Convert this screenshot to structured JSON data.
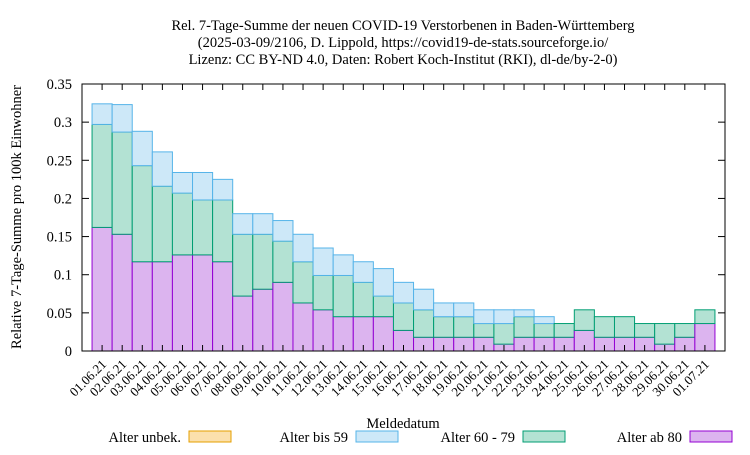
{
  "chart_data": {
    "type": "bar",
    "stacked": true,
    "title_lines": [
      "Rel. 7-Tage-Summe der neuen COVID-19 Verstorbenen in Baden-Württemberg",
      "(2025-03-09/2106, D. Lippold, https://covid19-de-stats.sourceforge.io/",
      "Lizenz: CC BY-ND 4.0, Daten: Robert Koch-Institut (RKI), dl-de/by-2-0)"
    ],
    "xlabel": "Meldedatum",
    "ylabel": "Relative 7-Tage-Summe pro 100k Einwohner",
    "ylim": [
      0,
      0.35
    ],
    "yticks": [
      "0",
      "0.05",
      "0.1",
      "0.15",
      "0.2",
      "0.25",
      "0.3",
      "0.35"
    ],
    "grid": false,
    "legend_position": "bottom",
    "categories": [
      "01.06.21",
      "02.06.21",
      "03.06.21",
      "04.06.21",
      "05.06.21",
      "06.06.21",
      "07.06.21",
      "08.06.21",
      "09.06.21",
      "10.06.21",
      "11.06.21",
      "12.06.21",
      "13.06.21",
      "14.06.21",
      "15.06.21",
      "16.06.21",
      "17.06.21",
      "18.06.21",
      "19.06.21",
      "20.06.21",
      "21.06.21",
      "22.06.21",
      "23.06.21",
      "24.06.21",
      "25.06.21",
      "26.06.21",
      "27.06.21",
      "28.06.21",
      "29.06.21",
      "30.06.21",
      "01.07.21"
    ],
    "series": [
      {
        "name": "Alter ab 80",
        "fill": "#dcb4ef",
        "stroke": "#9400d3",
        "values": [
          0.162,
          0.153,
          0.117,
          0.117,
          0.126,
          0.126,
          0.117,
          0.072,
          0.081,
          0.09,
          0.063,
          0.054,
          0.045,
          0.045,
          0.045,
          0.027,
          0.018,
          0.018,
          0.018,
          0.018,
          0.009,
          0.018,
          0.018,
          0.018,
          0.027,
          0.018,
          0.018,
          0.018,
          0.009,
          0.018,
          0.036
        ]
      },
      {
        "name": "Alter 60 - 79",
        "fill": "#b3e2d3",
        "stroke": "#009e73",
        "values": [
          0.135,
          0.134,
          0.126,
          0.099,
          0.081,
          0.072,
          0.081,
          0.081,
          0.072,
          0.054,
          0.054,
          0.045,
          0.054,
          0.045,
          0.027,
          0.036,
          0.036,
          0.027,
          0.027,
          0.018,
          0.027,
          0.027,
          0.018,
          0.018,
          0.027,
          0.027,
          0.027,
          0.018,
          0.027,
          0.018,
          0.018
        ]
      },
      {
        "name": "Alter bis 59",
        "fill": "#cde8f8",
        "stroke": "#56b4e9",
        "values": [
          0.027,
          0.036,
          0.045,
          0.045,
          0.027,
          0.036,
          0.027,
          0.027,
          0.027,
          0.027,
          0.036,
          0.036,
          0.027,
          0.027,
          0.036,
          0.027,
          0.027,
          0.018,
          0.018,
          0.018,
          0.018,
          0.009,
          0.009,
          0,
          0,
          0,
          0,
          0,
          0,
          0,
          0
        ]
      },
      {
        "name": "Alter unbek.",
        "fill": "#fbe0ad",
        "stroke": "#e69f00",
        "values": [
          0,
          0,
          0,
          0,
          0,
          0,
          0,
          0,
          0,
          0,
          0,
          0,
          0,
          0,
          0,
          0,
          0,
          0,
          0,
          0,
          0,
          0,
          0,
          0,
          0,
          0,
          0,
          0,
          0,
          0,
          0
        ]
      }
    ],
    "legend_order": [
      "Alter unbek.",
      "Alter bis 59",
      "Alter 60 - 79",
      "Alter ab 80"
    ]
  }
}
